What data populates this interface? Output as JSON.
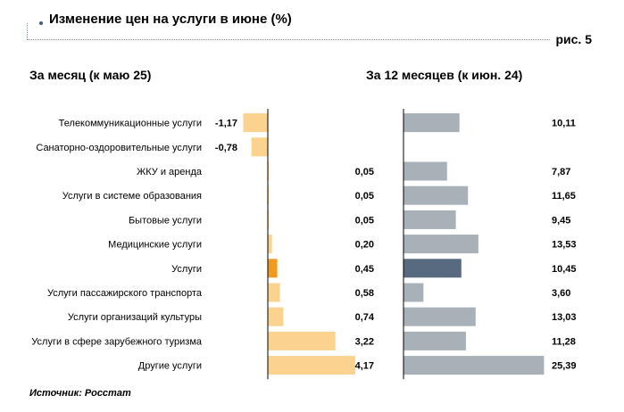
{
  "header": {
    "title": "Изменение цен на услуги в июне (%)",
    "figure_label": "рис. 5"
  },
  "source_note": "Источник: Росстат",
  "colors": {
    "month_bar": "#fbd28e",
    "month_highlight": "#f29a1f",
    "year_bar": "#a8b0b8",
    "year_highlight": "#586a80",
    "axis": "#000000"
  },
  "chart_data": [
    {
      "type": "bar",
      "orientation": "horizontal",
      "title": "За месяц (к маю 25)",
      "categories": [
        "Телекоммуникационные услуги",
        "Санаторно-оздоровительные услуги",
        "ЖКУ и аренда",
        "Услуги в системе образования",
        "Бытовые услуги",
        "Медицинские услуги",
        "Услуги",
        "Услуги пассажирского транспорта",
        "Услуги организаций культуры",
        "Услуги в сфере зарубежного туризма",
        "Другие услуги"
      ],
      "values": [
        -1.17,
        -0.78,
        0.05,
        0.05,
        0.05,
        0.2,
        0.45,
        0.58,
        0.74,
        3.22,
        4.17
      ],
      "value_labels": [
        "-1,17",
        "-0,78",
        "0,05",
        "0,05",
        "0,05",
        "0,20",
        "0,45",
        "0,58",
        "0,74",
        "3,22",
        "4,17"
      ],
      "highlight_index": 6,
      "xlim": [
        -1.2,
        4.2
      ]
    },
    {
      "type": "bar",
      "orientation": "horizontal",
      "title": "За 12 месяцев (к июн. 24)",
      "categories": [
        "Телекоммуникационные услуги",
        "Санаторно-оздоровительные услуги",
        "ЖКУ и аренда",
        "Услуги в системе образования",
        "Бытовые услуги",
        "Медицинские услуги",
        "Услуги",
        "Услуги пассажирского транспорта",
        "Услуги организаций культуры",
        "Услуги в сфере зарубежного туризма",
        "Другие услуги"
      ],
      "values": [
        10.11,
        null,
        7.87,
        11.65,
        9.45,
        13.53,
        10.45,
        3.6,
        13.03,
        11.28,
        25.39
      ],
      "value_labels": [
        "10,11",
        "",
        "7,87",
        "11,65",
        "9,45",
        "13,53",
        "10,45",
        "3,60",
        "13,03",
        "11,28",
        "25,39"
      ],
      "highlight_index": 6,
      "xlim": [
        0,
        25.4
      ]
    }
  ]
}
